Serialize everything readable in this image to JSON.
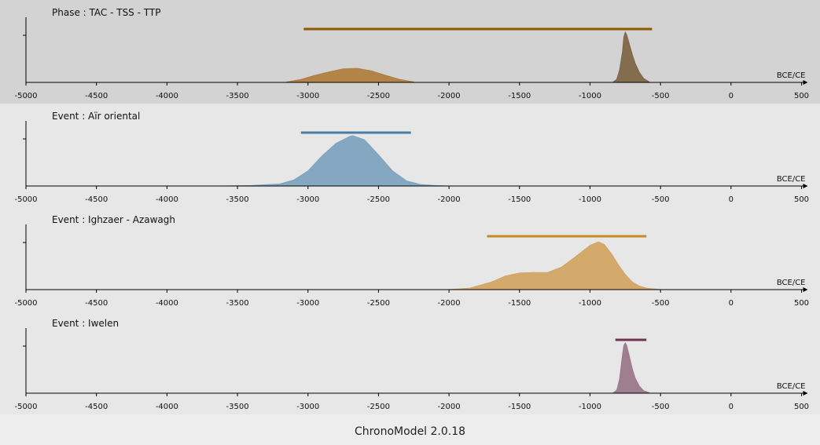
{
  "app": {
    "footer_label": "ChronoModel 2.0.18"
  },
  "axis": {
    "unit": "BCE/CE",
    "ticks": [
      -5000,
      -4500,
      -4000,
      -3500,
      -3000,
      -2500,
      -2000,
      -1500,
      -1000,
      -500,
      0,
      500
    ]
  },
  "chart_data": [
    {
      "type": "area",
      "title": "Phase : TAC - TSS - TTP",
      "xlim": [
        -5000,
        500
      ],
      "color": "#8b5a00",
      "hpd_interval": [
        -3030,
        -560
      ],
      "series": [
        {
          "color": "#b07f3f",
          "x": [
            -3150,
            -3050,
            -2950,
            -2850,
            -2750,
            -2650,
            -2550,
            -2450,
            -2350,
            -2250
          ],
          "y": [
            0.01,
            0.06,
            0.14,
            0.21,
            0.27,
            0.28,
            0.23,
            0.14,
            0.06,
            0.01
          ]
        },
        {
          "color": "#7f6648",
          "x": [
            -840,
            -810,
            -790,
            -770,
            -760,
            -750,
            -740,
            -720,
            -700,
            -680,
            -650,
            -620,
            -580
          ],
          "y": [
            0.0,
            0.06,
            0.25,
            0.6,
            0.9,
            1.0,
            0.95,
            0.75,
            0.55,
            0.38,
            0.2,
            0.08,
            0.01
          ]
        }
      ]
    },
    {
      "type": "area",
      "title": "Event : Aïr oriental",
      "xlim": [
        -5000,
        500
      ],
      "color": "#4a7ca6",
      "hpd_interval": [
        -3050,
        -2270
      ],
      "series": [
        {
          "color": "#7ea3c0",
          "x": [
            -3600,
            -3400,
            -3200,
            -3100,
            -3000,
            -2900,
            -2800,
            -2700,
            -2680,
            -2600,
            -2500,
            -2400,
            -2300,
            -2200,
            -2100,
            -2000
          ],
          "y": [
            0.0,
            0.01,
            0.04,
            0.12,
            0.3,
            0.6,
            0.85,
            0.99,
            1.0,
            0.92,
            0.62,
            0.3,
            0.1,
            0.03,
            0.01,
            0.0
          ]
        }
      ]
    },
    {
      "type": "area",
      "title": "Event : Ighzaer - Azawagh",
      "xlim": [
        -5000,
        500
      ],
      "color": "#c88a1e",
      "hpd_interval": [
        -1730,
        -600
      ],
      "series": [
        {
          "color": "#d2a665",
          "x": [
            -2000,
            -1850,
            -1700,
            -1600,
            -1500,
            -1400,
            -1300,
            -1200,
            -1100,
            -1000,
            -940,
            -900,
            -850,
            -800,
            -750,
            -700,
            -650,
            -600,
            -500
          ],
          "y": [
            0.0,
            0.03,
            0.15,
            0.27,
            0.33,
            0.34,
            0.34,
            0.45,
            0.66,
            0.88,
            0.95,
            0.9,
            0.72,
            0.5,
            0.3,
            0.15,
            0.07,
            0.03,
            0.0
          ]
        }
      ]
    },
    {
      "type": "area",
      "title": "Event : Iwelen",
      "xlim": [
        -5000,
        500
      ],
      "color": "#6e3450",
      "hpd_interval": [
        -820,
        -600
      ],
      "series": [
        {
          "color": "#9b788b",
          "x": [
            -840,
            -810,
            -790,
            -770,
            -760,
            -750,
            -740,
            -720,
            -700,
            -680,
            -650,
            -620,
            -580
          ],
          "y": [
            0.0,
            0.06,
            0.28,
            0.75,
            0.95,
            1.0,
            0.95,
            0.72,
            0.48,
            0.3,
            0.14,
            0.05,
            0.01
          ]
        }
      ]
    }
  ]
}
